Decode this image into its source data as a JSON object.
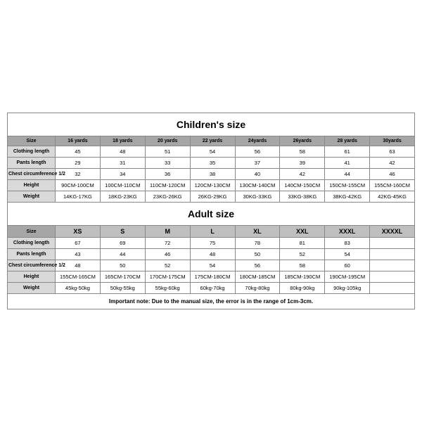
{
  "children": {
    "title": "Children's size",
    "size_label": "Size",
    "sizes": [
      "16 yards",
      "18 yards",
      "20 yards",
      "22 yards",
      "24yards",
      "26yards",
      "28 yards",
      "30yards"
    ],
    "rows": [
      {
        "label": "Clothing length",
        "vals": [
          "45",
          "48",
          "51",
          "54",
          "56",
          "58",
          "61",
          "63"
        ]
      },
      {
        "label": "Pants length",
        "vals": [
          "29",
          "31",
          "33",
          "35",
          "37",
          "39",
          "41",
          "42"
        ]
      },
      {
        "label": "Chest circumference 1/2",
        "vals": [
          "32",
          "34",
          "36",
          "38",
          "40",
          "42",
          "44",
          "46"
        ]
      },
      {
        "label": "Height",
        "vals": [
          "90CM-100CM",
          "100CM-110CM",
          "110CM-120CM",
          "120CM-130CM",
          "130CM-140CM",
          "140CM-150CM",
          "150CM-155CM",
          "155CM-160CM"
        ]
      },
      {
        "label": "Weight",
        "vals": [
          "14KG-17KG",
          "18KG-23KG",
          "23KG-26KG",
          "26KG-29KG",
          "30KG-33KG",
          "33KG-38KG",
          "38KG-42KG",
          "42KG-45KG"
        ]
      }
    ]
  },
  "adult": {
    "title": "Adult size",
    "size_label": "Size",
    "sizes": [
      "XS",
      "S",
      "M",
      "L",
      "XL",
      "XXL",
      "XXXL",
      "XXXXL"
    ],
    "rows": [
      {
        "label": "Clothing length",
        "vals": [
          "67",
          "69",
          "72",
          "75",
          "78",
          "81",
          "83",
          ""
        ]
      },
      {
        "label": "Pants length",
        "vals": [
          "43",
          "44",
          "46",
          "48",
          "50",
          "52",
          "54",
          ""
        ]
      },
      {
        "label": "Chest circumference 1/2",
        "vals": [
          "48",
          "50",
          "52",
          "54",
          "56",
          "58",
          "60",
          ""
        ]
      },
      {
        "label": "Height",
        "vals": [
          "155CM-165CM",
          "165CM-170CM",
          "170CM-175CM",
          "175CM-180CM",
          "180CM-185CM",
          "185CM-190CM",
          "190CM-195CM",
          ""
        ]
      },
      {
        "label": "Weight",
        "vals": [
          "45kg-50kg",
          "50kg-55kg",
          "55kg-60kg",
          "60kg-70kg",
          "70kg-80kg",
          "80kg-90kg",
          "90kg-105kg",
          ""
        ]
      }
    ]
  },
  "note": "Important note: Due to the manual size, the error is in the range of 1cm-3cm."
}
